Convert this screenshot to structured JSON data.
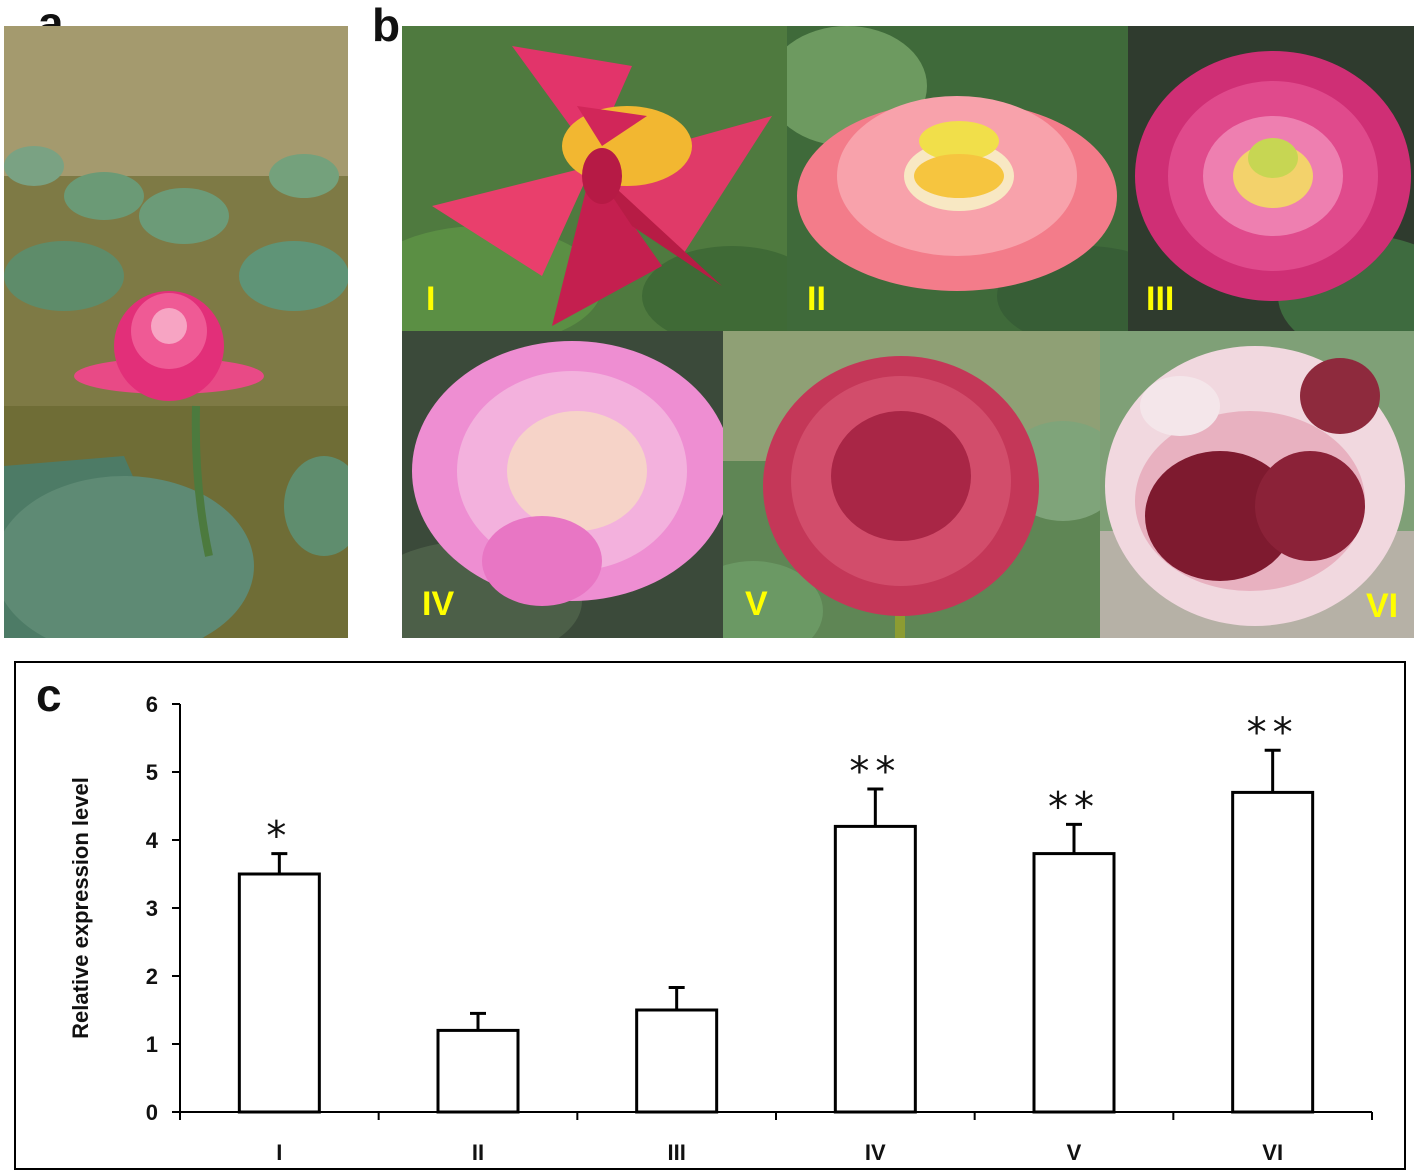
{
  "panels": {
    "a_label": "a",
    "b_label": "b",
    "c_label": "c"
  },
  "photo_labels": [
    "I",
    "II",
    "III",
    "IV",
    "V",
    "VI"
  ],
  "photo_label_color": "#ffff00",
  "chart_data": {
    "type": "bar",
    "categories": [
      "I",
      "II",
      "III",
      "IV",
      "V",
      "VI"
    ],
    "values": [
      3.5,
      1.2,
      1.5,
      4.2,
      3.8,
      4.7
    ],
    "errors": [
      0.3,
      0.25,
      0.33,
      0.55,
      0.43,
      0.62
    ],
    "significance": [
      "*",
      "",
      "",
      "**",
      "**",
      "**"
    ],
    "ylabel": "Relative expression level",
    "xlabel": "",
    "ylim": [
      0,
      6
    ],
    "yticks": [
      0,
      1,
      2,
      3,
      4,
      5,
      6
    ],
    "bar_fill": "#ffffff",
    "bar_stroke": "#000000",
    "grid": false,
    "legend": "none"
  }
}
